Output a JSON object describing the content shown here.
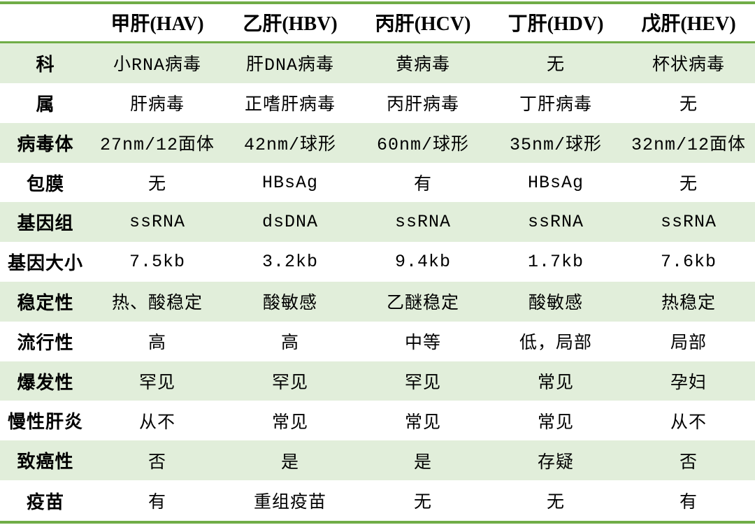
{
  "table": {
    "columns": [
      "",
      "甲肝(HAV)",
      "乙肝(HBV)",
      "丙肝(HCV)",
      "丁肝(HDV)",
      "戊肝(HEV)"
    ],
    "rows": [
      {
        "label": "科",
        "values": [
          "小RNA病毒",
          "肝DNA病毒",
          "黄病毒",
          "无",
          "杯状病毒"
        ]
      },
      {
        "label": "属",
        "values": [
          "肝病毒",
          "正嗜肝病毒",
          "丙肝病毒",
          "丁肝病毒",
          "无"
        ]
      },
      {
        "label": "病毒体",
        "values": [
          "27nm/12面体",
          "42nm/球形",
          "60nm/球形",
          "35nm/球形",
          "32nm/12面体"
        ]
      },
      {
        "label": "包膜",
        "values": [
          "无",
          "HBsAg",
          "有",
          "HBsAg",
          "无"
        ]
      },
      {
        "label": "基因组",
        "values": [
          "ssRNA",
          "dsDNA",
          "ssRNA",
          "ssRNA",
          "ssRNA"
        ]
      },
      {
        "label": "基因大小",
        "values": [
          "7.5kb",
          "3.2kb",
          "9.4kb",
          "1.7kb",
          "7.6kb"
        ]
      },
      {
        "label": "稳定性",
        "values": [
          "热、酸稳定",
          "酸敏感",
          "乙醚稳定",
          "酸敏感",
          "热稳定"
        ]
      },
      {
        "label": "流行性",
        "values": [
          "高",
          "高",
          "中等",
          "低，局部",
          "局部"
        ]
      },
      {
        "label": "爆发性",
        "values": [
          "罕见",
          "罕见",
          "罕见",
          "常见",
          "孕妇"
        ]
      },
      {
        "label": "慢性肝炎",
        "values": [
          "从不",
          "常见",
          "常见",
          "常见",
          "从不"
        ]
      },
      {
        "label": "致癌性",
        "values": [
          "否",
          "是",
          "是",
          "存疑",
          "否"
        ]
      },
      {
        "label": "疫苗",
        "values": [
          "有",
          "重组疫苗",
          "无",
          "无",
          "有"
        ]
      }
    ],
    "colors": {
      "border_green": "#70ad47",
      "row_green": "#e1eeda",
      "row_white": "#ffffff",
      "text": "#000000"
    }
  }
}
